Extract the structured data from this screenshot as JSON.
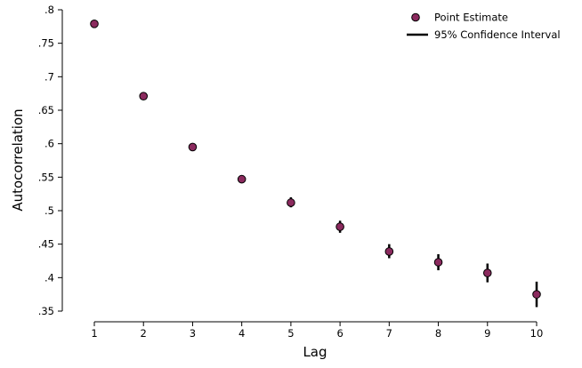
{
  "chart_data": {
    "type": "scatter",
    "xlabel": "Lag",
    "ylabel": "Autocorrelation",
    "xlim": [
      0.5,
      10.5
    ],
    "ylim": [
      0.35,
      0.8
    ],
    "x_ticks": [
      {
        "value": 1,
        "label": "1"
      },
      {
        "value": 2,
        "label": "2"
      },
      {
        "value": 3,
        "label": "3"
      },
      {
        "value": 4,
        "label": "4"
      },
      {
        "value": 5,
        "label": "5"
      },
      {
        "value": 6,
        "label": "6"
      },
      {
        "value": 7,
        "label": "7"
      },
      {
        "value": 8,
        "label": "8"
      },
      {
        "value": 9,
        "label": "9"
      },
      {
        "value": 10,
        "label": "10"
      }
    ],
    "y_ticks": [
      {
        "value": 0.8,
        "label": ".8"
      },
      {
        "value": 0.75,
        "label": ".75"
      },
      {
        "value": 0.7,
        "label": ".7"
      },
      {
        "value": 0.65,
        "label": ".65"
      },
      {
        "value": 0.6,
        "label": ".6"
      },
      {
        "value": 0.55,
        "label": ".55"
      },
      {
        "value": 0.5,
        "label": ".5"
      },
      {
        "value": 0.45,
        "label": ".45"
      },
      {
        "value": 0.4,
        "label": ".4"
      },
      {
        "value": 0.35,
        "label": ".35"
      }
    ],
    "grid": false,
    "legend": {
      "position": "top-right",
      "entries": [
        {
          "label": "Point Estimate",
          "kind": "marker"
        },
        {
          "label": "95% Confidence Interval",
          "kind": "line"
        }
      ]
    },
    "series": [
      {
        "name": "Point Estimate",
        "color": "#8b2a5e",
        "ci_color": "#000000",
        "points": [
          {
            "x": 1,
            "y": 0.779,
            "lo": 0.777,
            "hi": 0.781
          },
          {
            "x": 2,
            "y": 0.671,
            "lo": 0.668,
            "hi": 0.674
          },
          {
            "x": 3,
            "y": 0.595,
            "lo": 0.591,
            "hi": 0.6
          },
          {
            "x": 4,
            "y": 0.547,
            "lo": 0.541,
            "hi": 0.553
          },
          {
            "x": 5,
            "y": 0.512,
            "lo": 0.505,
            "hi": 0.52
          },
          {
            "x": 6,
            "y": 0.476,
            "lo": 0.467,
            "hi": 0.485
          },
          {
            "x": 7,
            "y": 0.439,
            "lo": 0.429,
            "hi": 0.45
          },
          {
            "x": 8,
            "y": 0.423,
            "lo": 0.411,
            "hi": 0.435
          },
          {
            "x": 9,
            "y": 0.407,
            "lo": 0.393,
            "hi": 0.421
          },
          {
            "x": 10,
            "y": 0.375,
            "lo": 0.356,
            "hi": 0.394
          }
        ]
      }
    ]
  }
}
